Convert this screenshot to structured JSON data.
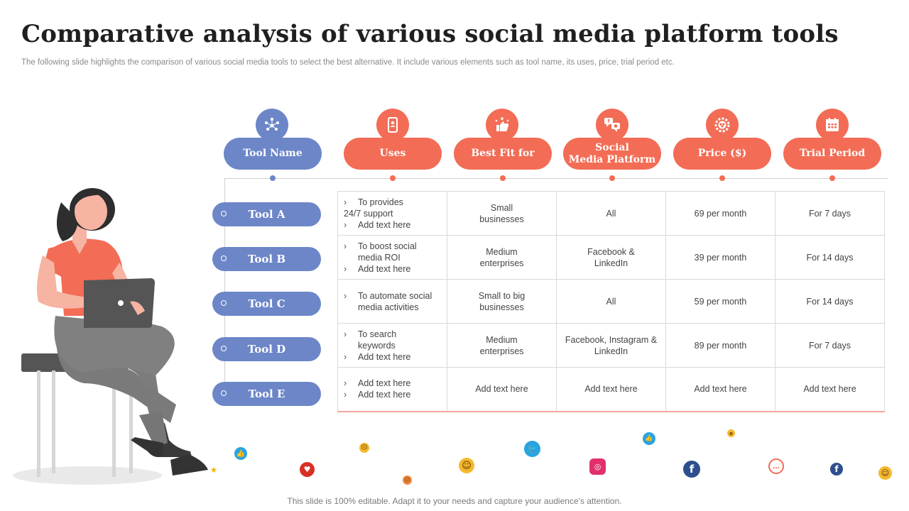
{
  "title": "Comparative analysis of various social media platform tools",
  "subtitle": "The following slide highlights the comparison of various social media tools to select the best alternative. It include various elements such as tool name, its uses, price, trial period etc.",
  "footer": "This slide is 100% editable. Adapt it to your needs and capture your audience's attention.",
  "headers": [
    {
      "label": "Tool Name",
      "icon": "people-network-icon",
      "color": "#6c86c8"
    },
    {
      "label": "Uses",
      "icon": "mobile-user-icon",
      "color": "#f36c55"
    },
    {
      "label": "Best Fit for",
      "icon": "thumbs-up-stars-icon",
      "color": "#f36c55"
    },
    {
      "label": "Social\nMedia Platform",
      "icon": "social-chat-icon",
      "color": "#f36c55"
    },
    {
      "label": "Price ($)",
      "icon": "gear-coins-icon",
      "color": "#f36c55"
    },
    {
      "label": "Trial Period",
      "icon": "calendar-icon",
      "color": "#f36c55"
    }
  ],
  "tools": [
    "Tool A",
    "Tool B",
    "Tool C",
    "Tool D",
    "Tool E"
  ],
  "rows": [
    {
      "uses": [
        "To provides",
        "24/7 support",
        "Add text here"
      ],
      "best_fit": "Small businesses",
      "platform": "All",
      "price": "69 per month",
      "trial": "For 7 days"
    },
    {
      "uses": [
        "To boost social",
        "media ROI",
        "Add text here"
      ],
      "best_fit": "Medium enterprises",
      "platform": "Facebook & LinkedIn",
      "price": "39 per month",
      "trial": "For 14 days"
    },
    {
      "uses": [
        "To automate social",
        "media activities"
      ],
      "best_fit": "Small to big businesses",
      "platform": "All",
      "price": "59 per month",
      "trial": "For 14 days"
    },
    {
      "uses": [
        "To search",
        "keywords",
        "Add text here"
      ],
      "best_fit": "Medium enterprises",
      "platform": "Facebook, Instagram & LinkedIn",
      "price": "89 per month",
      "trial": "For 7 days"
    },
    {
      "uses": [
        "Add text here",
        "Add text here"
      ],
      "best_fit": "Add text here",
      "platform": "Add text here",
      "price": "Add text here",
      "trial": "Add text here"
    }
  ]
}
